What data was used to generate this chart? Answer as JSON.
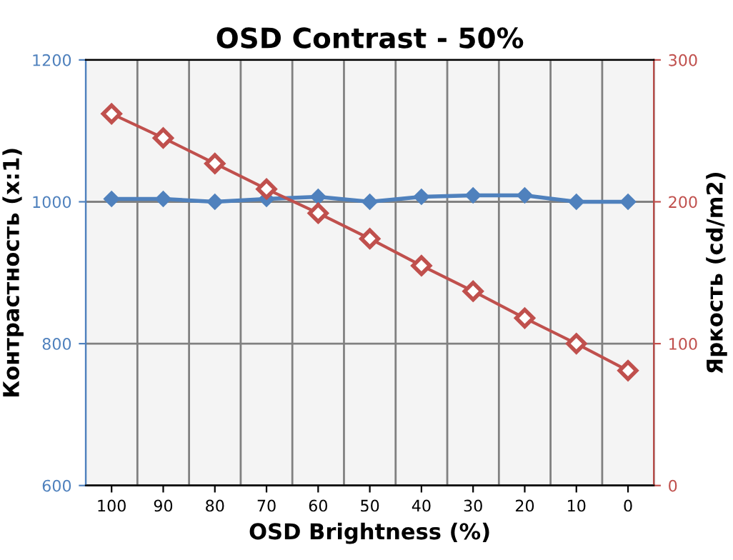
{
  "chart_data": {
    "type": "line",
    "title": "OSD Contrast - 50%",
    "xlabel": "OSD Brightness (%)",
    "ylabel": "Контрастность (x:1)",
    "y2label": "Яркость (cd/m2)",
    "categories": [
      "100",
      "90",
      "80",
      "70",
      "60",
      "50",
      "40",
      "30",
      "20",
      "10",
      "0"
    ],
    "series": [
      {
        "color": "#4f81bd",
        "marker": "diamond",
        "values": [
          1004,
          1004,
          1000,
          1004,
          1007,
          1000,
          1007,
          1009,
          1009,
          1000,
          1000
        ]
      },
      {
        "color": "#c0504d",
        "marker": "diamond",
        "axis": "y2",
        "values": [
          262,
          245,
          227,
          209,
          192,
          174,
          155,
          137,
          118,
          100,
          81
        ]
      }
    ],
    "ylim": [
      600,
      1200
    ],
    "yticks": [
      600,
      800,
      1000,
      1200
    ],
    "y2lim": [
      0,
      300
    ],
    "y2ticks": [
      0,
      100,
      200,
      300
    ],
    "grid": true,
    "legend": false
  }
}
